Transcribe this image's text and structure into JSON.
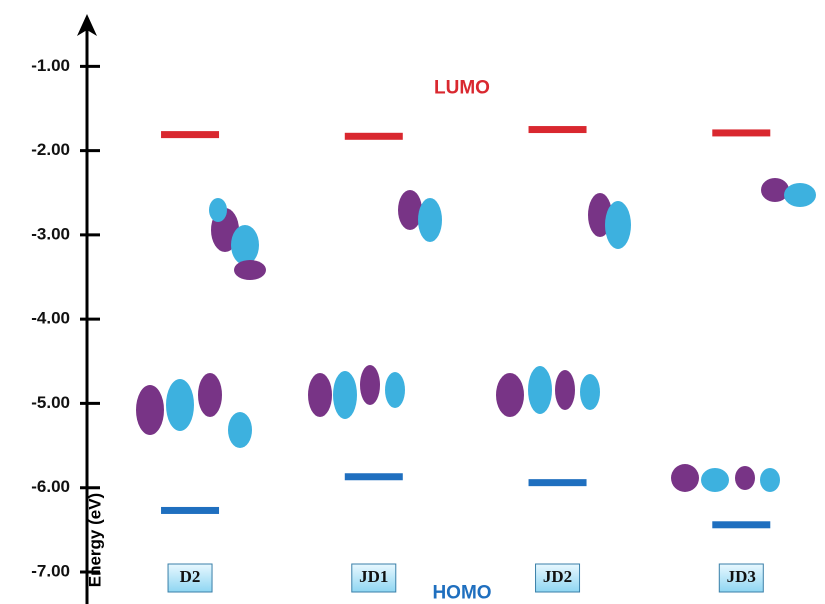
{
  "chart_data": {
    "type": "energy-level",
    "y_label": "Energy (eV)",
    "categories": [
      "D2",
      "JD1",
      "JD2",
      "JD3"
    ],
    "series": [
      {
        "name": "LUMO",
        "color": "#d9282f",
        "values": [
          -1.81,
          -1.83,
          -1.75,
          -1.79
        ]
      },
      {
        "name": "HOMO",
        "color": "#1f6fbf",
        "values": [
          -6.27,
          -5.87,
          -5.94,
          -6.44
        ]
      }
    ],
    "ylim": [
      -7.38,
      -0.45
    ],
    "yticks": [
      {
        "value": -1,
        "label": "-1.00"
      },
      {
        "value": -2,
        "label": "-2.00"
      },
      {
        "value": -3,
        "label": "-3.00"
      },
      {
        "value": -4,
        "label": "-4.00"
      },
      {
        "value": -5,
        "label": "-5.00"
      },
      {
        "value": -6,
        "label": "-6.00"
      },
      {
        "value": -7,
        "label": "-7.00"
      }
    ]
  }
}
